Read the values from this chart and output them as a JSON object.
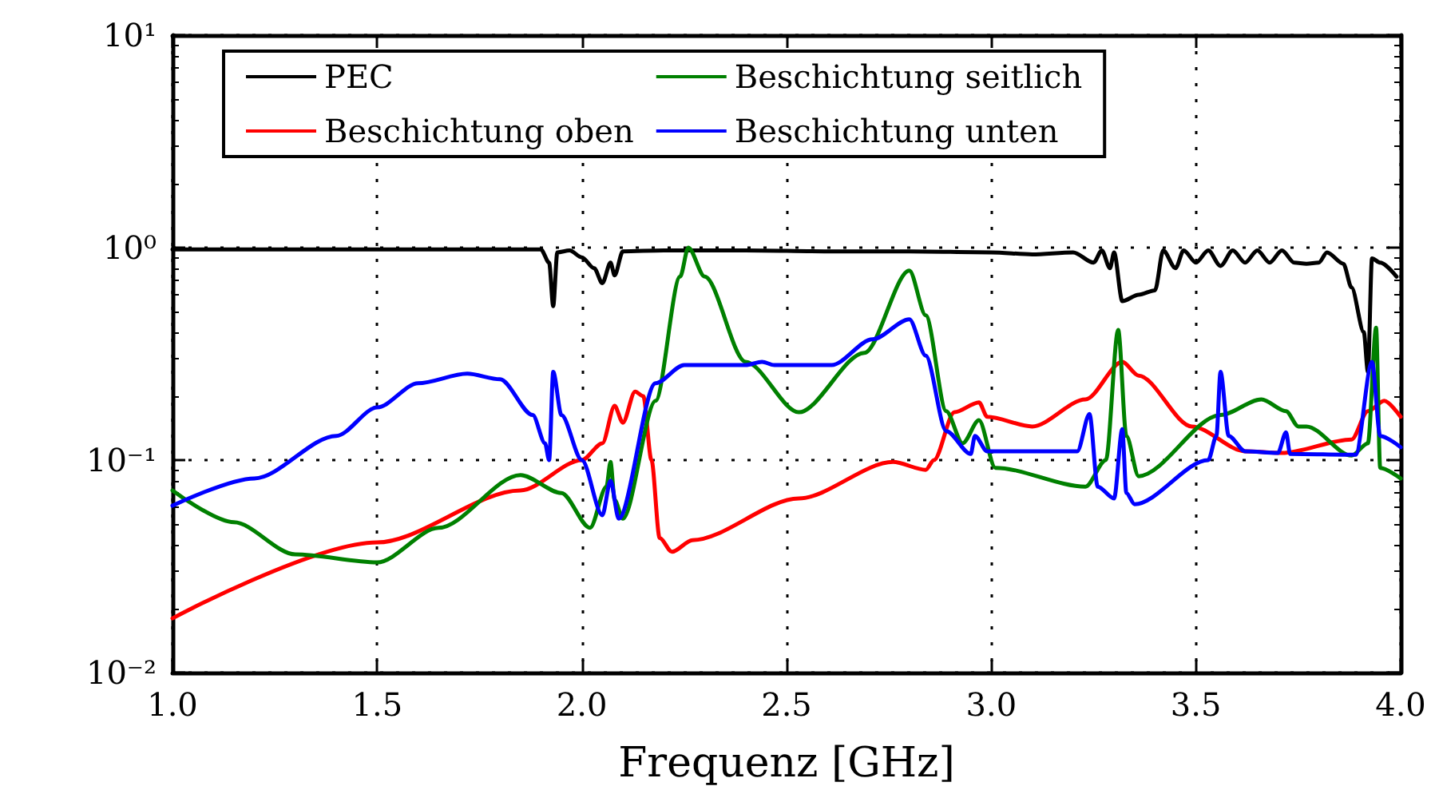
{
  "chart_data": {
    "type": "line",
    "xlabel": "Frequenz [GHz]",
    "log": "y",
    "grid": true,
    "legend": "top",
    "line_style": "solid",
    "marker": "none",
    "xlim": [
      1,
      4
    ],
    "xticks": [
      {
        "value": 1,
        "label": "1.0"
      },
      {
        "value": 1.5,
        "label": "1.5"
      },
      {
        "value": 2,
        "label": "2.0"
      },
      {
        "value": 2.5,
        "label": "2.5"
      },
      {
        "value": 3,
        "label": "3.0"
      },
      {
        "value": 3.5,
        "label": "3.5"
      },
      {
        "value": 4,
        "label": "4.0"
      }
    ],
    "ylim": [
      0.01,
      10
    ],
    "yticks": [
      {
        "value": 0.01,
        "label": "10⁻²"
      },
      {
        "value": 0.1,
        "label": "10⁻¹"
      },
      {
        "value": 1,
        "label": "10⁰"
      },
      {
        "value": 10,
        "label": "10¹"
      }
    ],
    "series": [
      {
        "name": "PEC",
        "color": "#000000",
        "x": [
          1.0,
          1.3,
          1.6,
          1.9,
          1.92,
          1.93,
          1.94,
          1.97,
          2.0,
          2.03,
          2.05,
          2.07,
          2.08,
          2.1,
          2.2,
          2.4,
          2.6,
          2.8,
          3.0,
          3.1,
          3.2,
          3.25,
          3.27,
          3.29,
          3.3,
          3.32,
          3.36,
          3.4,
          3.42,
          3.45,
          3.47,
          3.5,
          3.53,
          3.56,
          3.59,
          3.62,
          3.65,
          3.68,
          3.71,
          3.74,
          3.77,
          3.8,
          3.82,
          3.86,
          3.88,
          3.91,
          3.92,
          3.93,
          3.95,
          3.99
        ],
        "values": [
          0.98,
          0.98,
          0.98,
          0.98,
          0.85,
          0.53,
          0.95,
          0.97,
          0.9,
          0.8,
          0.68,
          0.85,
          0.74,
          0.96,
          0.97,
          0.97,
          0.96,
          0.96,
          0.95,
          0.93,
          0.95,
          0.85,
          0.97,
          0.8,
          0.95,
          0.56,
          0.6,
          0.63,
          0.97,
          0.8,
          0.97,
          0.85,
          0.97,
          0.82,
          0.97,
          0.85,
          0.97,
          0.85,
          0.97,
          0.85,
          0.84,
          0.85,
          0.95,
          0.84,
          0.65,
          0.4,
          0.26,
          0.89,
          0.85,
          0.73
        ]
      },
      {
        "name": "Beschichtung oben",
        "color": "#ff0000",
        "x": [
          1.0,
          1.5,
          1.85,
          2.0,
          2.05,
          2.08,
          2.1,
          2.13,
          2.15,
          2.17,
          2.19,
          2.22,
          2.27,
          2.53,
          2.76,
          2.84,
          2.86,
          2.91,
          2.97,
          2.99,
          3.1,
          3.23,
          3.32,
          3.36,
          3.49,
          3.62,
          3.71,
          3.88,
          3.92,
          3.96,
          4.0
        ],
        "values": [
          0.018,
          0.041,
          0.072,
          0.1,
          0.12,
          0.18,
          0.15,
          0.21,
          0.2,
          0.1,
          0.043,
          0.037,
          0.042,
          0.066,
          0.098,
          0.09,
          0.1,
          0.168,
          0.187,
          0.16,
          0.144,
          0.193,
          0.29,
          0.25,
          0.144,
          0.11,
          0.108,
          0.125,
          0.17,
          0.19,
          0.16
        ]
      },
      {
        "name": "Beschichtung seitlich",
        "color": "#008000",
        "x": [
          1.0,
          1.15,
          1.3,
          1.5,
          1.65,
          1.85,
          1.95,
          2.02,
          2.06,
          2.07,
          2.08,
          2.1,
          2.18,
          2.24,
          2.26,
          2.3,
          2.4,
          2.53,
          2.69,
          2.8,
          2.84,
          2.89,
          2.93,
          2.97,
          3.01,
          3.23,
          3.28,
          3.31,
          3.33,
          3.36,
          3.56,
          3.66,
          3.72,
          3.75,
          3.77,
          3.88,
          3.92,
          3.94,
          3.95,
          4.0
        ],
        "values": [
          0.072,
          0.051,
          0.036,
          0.033,
          0.048,
          0.085,
          0.07,
          0.048,
          0.075,
          0.098,
          0.065,
          0.053,
          0.19,
          0.73,
          1.0,
          0.73,
          0.29,
          0.168,
          0.32,
          0.78,
          0.48,
          0.17,
          0.12,
          0.154,
          0.092,
          0.075,
          0.1,
          0.41,
          0.13,
          0.084,
          0.163,
          0.193,
          0.17,
          0.144,
          0.144,
          0.105,
          0.12,
          0.42,
          0.092,
          0.082
        ]
      },
      {
        "name": "Beschichtung unten",
        "color": "#0000ff",
        "x": [
          1.0,
          1.2,
          1.4,
          1.5,
          1.6,
          1.72,
          1.8,
          1.88,
          1.91,
          1.92,
          1.93,
          1.95,
          2.0,
          2.05,
          2.07,
          2.09,
          2.18,
          2.25,
          2.4,
          2.44,
          2.47,
          2.61,
          2.71,
          2.8,
          2.84,
          2.89,
          2.95,
          2.96,
          2.99,
          3.21,
          3.24,
          3.26,
          3.3,
          3.32,
          3.33,
          3.35,
          3.53,
          3.55,
          3.56,
          3.58,
          3.62,
          3.7,
          3.72,
          3.73,
          3.89,
          3.93,
          3.95,
          4.0
        ],
        "values": [
          0.061,
          0.082,
          0.13,
          0.177,
          0.23,
          0.255,
          0.24,
          0.163,
          0.12,
          0.1,
          0.26,
          0.163,
          0.1,
          0.055,
          0.08,
          0.053,
          0.23,
          0.28,
          0.28,
          0.29,
          0.28,
          0.28,
          0.37,
          0.46,
          0.31,
          0.137,
          0.107,
          0.13,
          0.11,
          0.11,
          0.165,
          0.075,
          0.066,
          0.14,
          0.07,
          0.062,
          0.1,
          0.13,
          0.26,
          0.13,
          0.11,
          0.108,
          0.135,
          0.107,
          0.106,
          0.29,
          0.13,
          0.115
        ]
      }
    ]
  }
}
